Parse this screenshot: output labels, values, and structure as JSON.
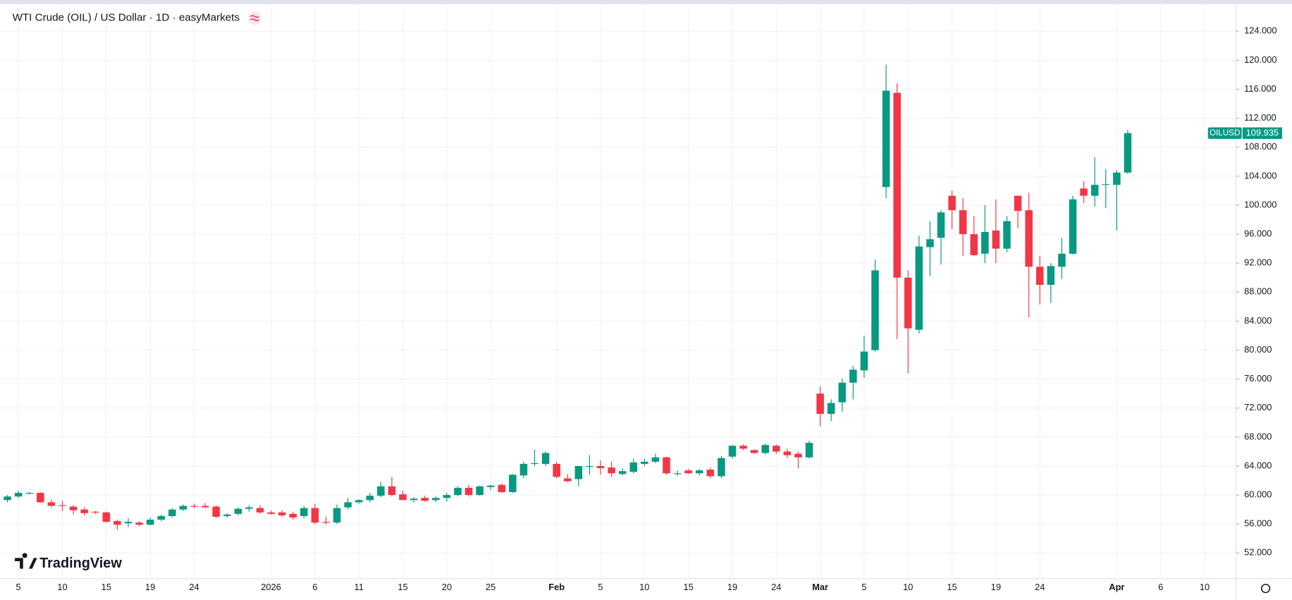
{
  "chart_data": {
    "type": "candlestick",
    "title": "WTI Crude (OIL) / US Dollar · 1D · easyMarkets",
    "symbol": "OILUSD",
    "watermark": "TradingView",
    "up_color": "#089981",
    "down_color": "#f23645",
    "grid": true,
    "categories": [
      null,
      "5",
      null,
      null,
      null,
      "10",
      null,
      null,
      null,
      "15",
      null,
      null,
      null,
      "19",
      null,
      null,
      null,
      "24",
      null,
      null,
      null,
      null,
      null,
      null,
      "2026",
      null,
      null,
      null,
      "6",
      null,
      null,
      null,
      "11",
      null,
      null,
      null,
      "15",
      null,
      null,
      null,
      "20",
      null,
      null,
      null,
      "25",
      null,
      null,
      null,
      null,
      null,
      "Feb",
      null,
      null,
      null,
      "5",
      null,
      null,
      null,
      "10",
      null,
      null,
      null,
      "15",
      null,
      null,
      null,
      "19",
      null,
      null,
      null,
      "24",
      null,
      null,
      null,
      "Mar",
      null,
      null,
      null,
      "5",
      null,
      null,
      null,
      "10",
      null,
      null,
      null,
      "15",
      null,
      null,
      null,
      "19",
      null,
      null,
      null,
      "24",
      null,
      null,
      null,
      null,
      null,
      null,
      "Apr",
      null,
      null,
      null,
      "6",
      null,
      null,
      null,
      "10",
      null,
      null
    ],
    "open": [
      59.3,
      59.8,
      60.2,
      60.3,
      59.0,
      58.6,
      58.4,
      58.0,
      57.7,
      57.6,
      56.4,
      56.1,
      56.2,
      55.9,
      56.6,
      57.1,
      58.0,
      58.5,
      58.5,
      58.4,
      57.1,
      57.4,
      58.1,
      58.2,
      57.6,
      57.6,
      57.4,
      57.1,
      58.2,
      56.3,
      56.2,
      58.3,
      59.0,
      59.3,
      59.9,
      61.2,
      60.1,
      59.3,
      59.6,
      59.3,
      59.6,
      60.0,
      61.0,
      60.0,
      61.1,
      61.4,
      60.4,
      62.7,
      64.3,
      64.3,
      64.3,
      62.3,
      62.2,
      63.9,
      64.0,
      63.8,
      62.9,
      63.2,
      64.3,
      64.6,
      65.2,
      63.0,
      63.4,
      63.0,
      63.5,
      62.6,
      65.3,
      66.8,
      66.2,
      65.8,
      66.8,
      66.0,
      65.7,
      65.2,
      74.0,
      71.2,
      72.8,
      75.5,
      77.2,
      80.0,
      102.5,
      115.5,
      90.0,
      82.8,
      94.2,
      95.5,
      101.3,
      99.3,
      96.0,
      93.3,
      96.5,
      94.0,
      101.3,
      99.3,
      91.5,
      89.0,
      91.5,
      93.3,
      102.3,
      101.3,
      102.8,
      102.8,
      104.5,
      null,
      null,
      null,
      null,
      null,
      null,
      null,
      null,
      null
    ],
    "high": [
      60.0,
      60.6,
      60.4,
      60.4,
      59.4,
      59.2,
      58.6,
      58.3,
      57.8,
      57.7,
      56.6,
      56.8,
      56.4,
      56.9,
      57.3,
      58.2,
      58.7,
      58.8,
      58.9,
      58.6,
      57.5,
      58.3,
      58.6,
      58.6,
      57.9,
      57.9,
      57.7,
      58.5,
      58.8,
      57.0,
      58.7,
      59.6,
      59.4,
      60.3,
      61.8,
      62.5,
      60.6,
      59.7,
      59.9,
      59.8,
      60.3,
      61.2,
      61.4,
      61.3,
      61.4,
      61.6,
      62.9,
      64.6,
      66.3,
      66.0,
      64.6,
      62.9,
      64.0,
      65.5,
      64.8,
      64.6,
      63.7,
      65.0,
      65.0,
      65.7,
      65.3,
      63.4,
      63.6,
      63.6,
      63.8,
      65.4,
      66.9,
      67.0,
      66.3,
      67.1,
      67.0,
      66.4,
      66.0,
      67.5,
      75.0,
      73.2,
      76.1,
      77.8,
      82.0,
      92.5,
      119.4,
      116.8,
      91.0,
      95.8,
      97.8,
      99.3,
      102.0,
      101.0,
      98.5,
      100.0,
      100.8,
      98.5,
      101.3,
      101.7,
      93.0,
      92.0,
      95.5,
      101.3,
      103.3,
      106.6,
      105.0,
      104.8,
      110.4,
      null,
      null,
      null,
      null,
      null,
      null,
      null,
      null,
      null
    ],
    "low": [
      59.0,
      59.6,
      60.1,
      58.9,
      58.3,
      57.8,
      57.3,
      57.2,
      57.4,
      56.2,
      55.2,
      55.6,
      55.7,
      55.8,
      56.4,
      56.9,
      57.8,
      58.2,
      58.2,
      56.8,
      56.9,
      57.2,
      57.7,
      57.4,
      57.3,
      57.0,
      56.6,
      56.8,
      56.0,
      55.9,
      56.0,
      58.0,
      58.8,
      59.0,
      59.7,
      59.8,
      59.3,
      59.0,
      59.1,
      59.0,
      59.1,
      59.8,
      59.8,
      59.9,
      60.7,
      60.3,
      60.3,
      62.3,
      64.0,
      64.0,
      62.3,
      61.8,
      61.2,
      62.8,
      62.8,
      62.5,
      62.7,
      63.0,
      64.0,
      64.4,
      62.8,
      62.6,
      62.9,
      62.7,
      62.3,
      62.3,
      65.0,
      66.2,
      65.7,
      65.6,
      65.7,
      65.1,
      63.7,
      65.0,
      69.5,
      70.2,
      71.5,
      73.2,
      76.2,
      79.8,
      101.0,
      81.5,
      76.8,
      82.3,
      90.2,
      91.8,
      96.7,
      93.0,
      93.0,
      92.0,
      92.0,
      93.5,
      96.8,
      84.5,
      86.3,
      86.5,
      89.8,
      93.2,
      100.3,
      99.8,
      99.6,
      96.5,
      104.3,
      null,
      null,
      null,
      null,
      null,
      null,
      null,
      null,
      null
    ],
    "close": [
      59.8,
      60.3,
      60.3,
      59.0,
      58.5,
      58.5,
      57.9,
      57.5,
      57.6,
      56.3,
      55.9,
      56.3,
      55.9,
      56.6,
      57.1,
      58.0,
      58.5,
      58.4,
      58.3,
      57.0,
      57.3,
      58.1,
      58.3,
      57.6,
      57.4,
      57.2,
      56.9,
      58.2,
      56.2,
      56.2,
      58.2,
      59.0,
      59.3,
      59.9,
      61.2,
      60.0,
      59.3,
      59.5,
      59.2,
      59.6,
      60.0,
      61.0,
      60.0,
      61.2,
      61.3,
      60.4,
      62.8,
      64.3,
      64.4,
      65.8,
      62.5,
      61.9,
      64.0,
      64.0,
      63.7,
      63.0,
      63.3,
      64.5,
      64.6,
      65.2,
      63.0,
      63.0,
      63.0,
      63.4,
      62.6,
      65.1,
      66.8,
      66.4,
      65.8,
      66.9,
      66.0,
      65.5,
      65.2,
      67.2,
      71.2,
      72.7,
      75.5,
      77.3,
      79.8,
      91.0,
      115.8,
      90.0,
      83.0,
      94.3,
      95.3,
      99.0,
      99.3,
      96.0,
      93.1,
      96.3,
      94.0,
      97.8,
      99.2,
      91.5,
      89.0,
      91.6,
      93.3,
      100.8,
      101.3,
      102.8,
      102.9,
      104.5,
      109.935,
      null,
      null,
      null,
      null,
      null,
      null,
      null,
      null,
      null
    ],
    "ylim": [
      48.7,
      127.4
    ],
    "yticks": [
      {
        "value": 52,
        "label": "52.000"
      },
      {
        "value": 56,
        "label": "56.000"
      },
      {
        "value": 60,
        "label": "60.000"
      },
      {
        "value": 64,
        "label": "64.000"
      },
      {
        "value": 68,
        "label": "68.000"
      },
      {
        "value": 72,
        "label": "72.000"
      },
      {
        "value": 76,
        "label": "76.000"
      },
      {
        "value": 80,
        "label": "80.000"
      },
      {
        "value": 84,
        "label": "84.000"
      },
      {
        "value": 88,
        "label": "88.000"
      },
      {
        "value": 92,
        "label": "92.000"
      },
      {
        "value": 96,
        "label": "96.000"
      },
      {
        "value": 100,
        "label": "100.000"
      },
      {
        "value": 104,
        "label": "104.000"
      },
      {
        "value": 108,
        "label": "108.000"
      },
      {
        "value": 112,
        "label": "112.000"
      },
      {
        "value": 116,
        "label": "116.000"
      },
      {
        "value": 120,
        "label": "120.000"
      },
      {
        "value": 124,
        "label": "124.000"
      }
    ]
  }
}
